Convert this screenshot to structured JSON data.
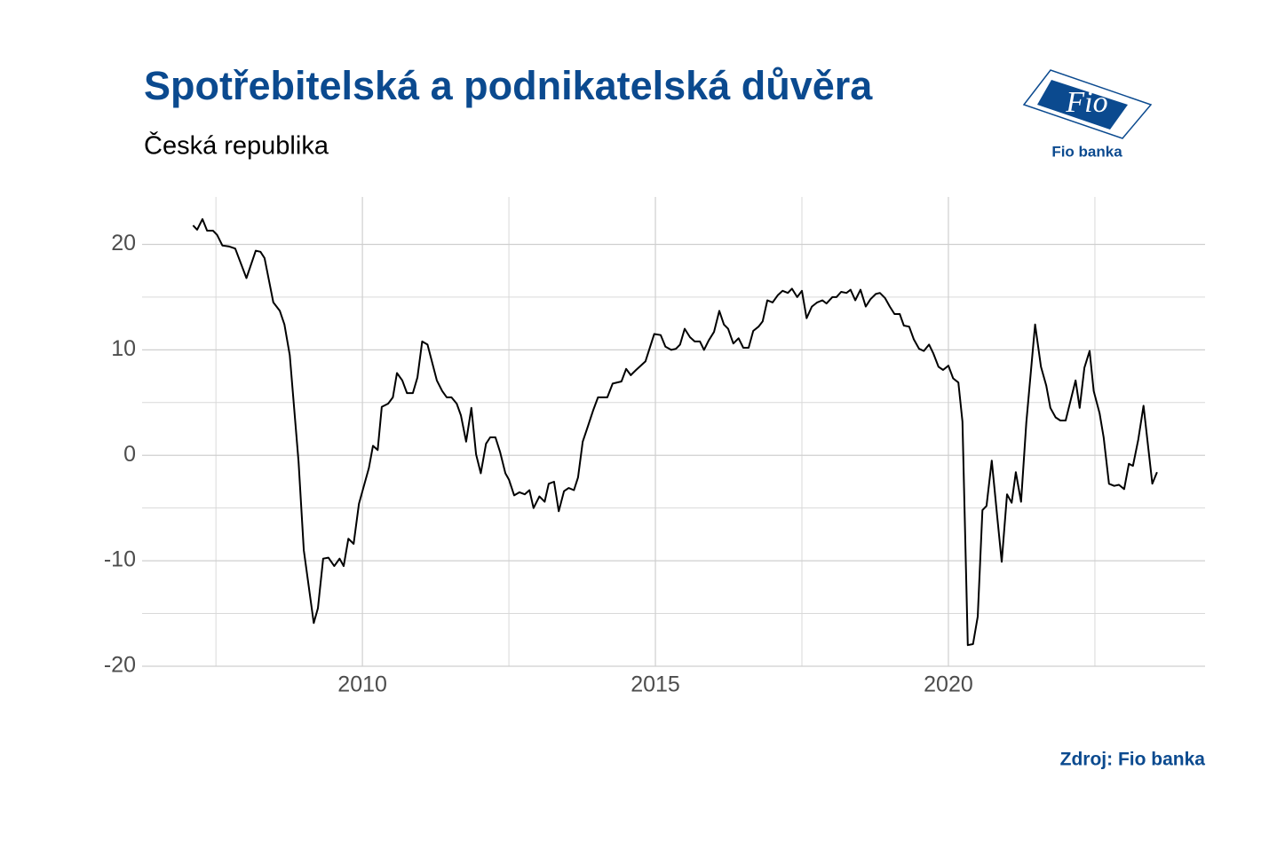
{
  "chart_data": {
    "type": "line",
    "title": "Spotřebitelská a podnikatelská důvěra",
    "subtitle": "Česká republika",
    "source": "Zdroj: Fio banka",
    "logo": {
      "mark": "Fio",
      "name": "Fio banka"
    },
    "color": "#000000",
    "grid": true,
    "xlim": [
      2006.24,
      2024.38
    ],
    "xticks": [
      2010,
      2015,
      2020
    ],
    "xminor": [
      2007.5,
      2012.5,
      2017.5,
      2022.5
    ],
    "ylim": [
      -20,
      24.5
    ],
    "yticks": [
      -20,
      -10,
      0,
      10,
      20
    ],
    "yminor": [
      -15,
      -5,
      5,
      15
    ],
    "x": [
      2007.11,
      2007.18,
      2007.27,
      2007.35,
      2007.45,
      2007.52,
      2007.61,
      2007.73,
      2007.83,
      2008.02,
      2008.18,
      2008.26,
      2008.33,
      2008.48,
      2008.59,
      2008.67,
      2008.76,
      2008.91,
      2009.0,
      2009.17,
      2009.24,
      2009.33,
      2009.42,
      2009.52,
      2009.61,
      2009.68,
      2009.76,
      2009.85,
      2009.94,
      2010.11,
      2010.18,
      2010.26,
      2010.33,
      2010.44,
      2010.52,
      2010.59,
      2010.68,
      2010.76,
      2010.86,
      2010.94,
      2011.02,
      2011.11,
      2011.27,
      2011.36,
      2011.44,
      2011.52,
      2011.61,
      2011.68,
      2011.77,
      2011.86,
      2011.94,
      2012.02,
      2012.11,
      2012.18,
      2012.27,
      2012.35,
      2012.44,
      2012.5,
      2012.59,
      2012.68,
      2012.77,
      2012.85,
      2012.92,
      2013.02,
      2013.11,
      2013.18,
      2013.27,
      2013.35,
      2013.44,
      2013.52,
      2013.61,
      2013.68,
      2013.76,
      2013.85,
      2013.94,
      2014.02,
      2014.18,
      2014.27,
      2014.42,
      2014.5,
      2014.58,
      2014.67,
      2014.83,
      2014.98,
      2015.09,
      2015.17,
      2015.27,
      2015.35,
      2015.42,
      2015.5,
      2015.59,
      2015.67,
      2015.76,
      2015.83,
      2015.91,
      2016.0,
      2016.09,
      2016.17,
      2016.24,
      2016.33,
      2016.42,
      2016.5,
      2016.59,
      2016.67,
      2016.76,
      2016.83,
      2016.91,
      2017.0,
      2017.09,
      2017.17,
      2017.26,
      2017.33,
      2017.42,
      2017.5,
      2017.58,
      2017.67,
      2017.76,
      2017.85,
      2017.92,
      2018.02,
      2018.09,
      2018.17,
      2018.26,
      2018.33,
      2018.41,
      2018.5,
      2018.59,
      2018.67,
      2018.76,
      2018.83,
      2018.92,
      2019.0,
      2019.08,
      2019.17,
      2019.24,
      2019.33,
      2019.41,
      2019.5,
      2019.58,
      2019.67,
      2019.74,
      2019.83,
      2019.91,
      2020.0,
      2020.08,
      2020.17,
      2020.24,
      2020.33,
      2020.42,
      2020.5,
      2020.58,
      2020.65,
      2020.74,
      2020.83,
      2020.91,
      2021.0,
      2021.08,
      2021.15,
      2021.24,
      2021.33,
      2021.48,
      2021.58,
      2021.67,
      2021.74,
      2021.83,
      2021.91,
      2022.0,
      2022.17,
      2022.24,
      2022.32,
      2022.41,
      2022.48,
      2022.58,
      2022.65,
      2022.74,
      2022.83,
      2022.91,
      2023.0,
      2023.08,
      2023.15,
      2023.24,
      2023.33,
      2023.48,
      2023.56
    ],
    "values": [
      21.8,
      21.4,
      22.4,
      21.3,
      21.3,
      20.9,
      19.9,
      19.8,
      19.6,
      16.8,
      19.4,
      19.3,
      18.7,
      14.5,
      13.7,
      12.4,
      9.5,
      -0.6,
      -9,
      -15.9,
      -14.5,
      -9.8,
      -9.7,
      -10.5,
      -9.8,
      -10.5,
      -7.9,
      -8.4,
      -4.6,
      -1.2,
      0.9,
      0.5,
      4.6,
      4.9,
      5.5,
      7.8,
      7.1,
      5.9,
      5.9,
      7.4,
      10.8,
      10.5,
      7.1,
      6.1,
      5.5,
      5.5,
      4.9,
      3.8,
      1.3,
      4.5,
      0.1,
      -1.7,
      1.1,
      1.7,
      1.7,
      0.3,
      -1.7,
      -2.3,
      -3.8,
      -3.5,
      -3.7,
      -3.3,
      -5,
      -3.9,
      -4.4,
      -2.7,
      -2.5,
      -5.3,
      -3.4,
      -3.1,
      -3.3,
      -2.1,
      1.3,
      2.8,
      4.3,
      5.5,
      5.5,
      6.8,
      7.0,
      8.2,
      7.6,
      8.1,
      8.9,
      11.5,
      11.4,
      10.3,
      10.0,
      10.1,
      10.5,
      12.0,
      11.2,
      10.8,
      10.8,
      10.0,
      10.9,
      11.7,
      13.7,
      12.4,
      12.0,
      10.6,
      11.1,
      10.2,
      10.2,
      11.8,
      12.2,
      12.7,
      14.7,
      14.5,
      15.2,
      15.6,
      15.4,
      15.8,
      15.0,
      15.6,
      13.0,
      14.1,
      14.5,
      14.7,
      14.4,
      15.0,
      15.0,
      15.5,
      15.4,
      15.7,
      14.7,
      15.7,
      14.1,
      14.8,
      15.3,
      15.4,
      14.9,
      14.1,
      13.4,
      13.4,
      12.3,
      12.2,
      11.0,
      10.1,
      9.9,
      10.5,
      9.7,
      8.4,
      8.1,
      8.5,
      7.3,
      6.9,
      3.2,
      -18,
      -17.9,
      -15.3,
      -5.2,
      -4.8,
      -0.5,
      -5.6,
      -10.1,
      -3.7,
      -4.5,
      -1.6,
      -4.4,
      3.1,
      12.4,
      8.4,
      6.6,
      4.5,
      3.6,
      3.3,
      3.3,
      7.1,
      4.5,
      8.3,
      9.9,
      6.1,
      4.0,
      1.7,
      -2.7,
      -2.9,
      -2.8,
      -3.2,
      -0.8,
      -1.0,
      1.5,
      4.7,
      -2.7,
      -1.6
    ]
  }
}
